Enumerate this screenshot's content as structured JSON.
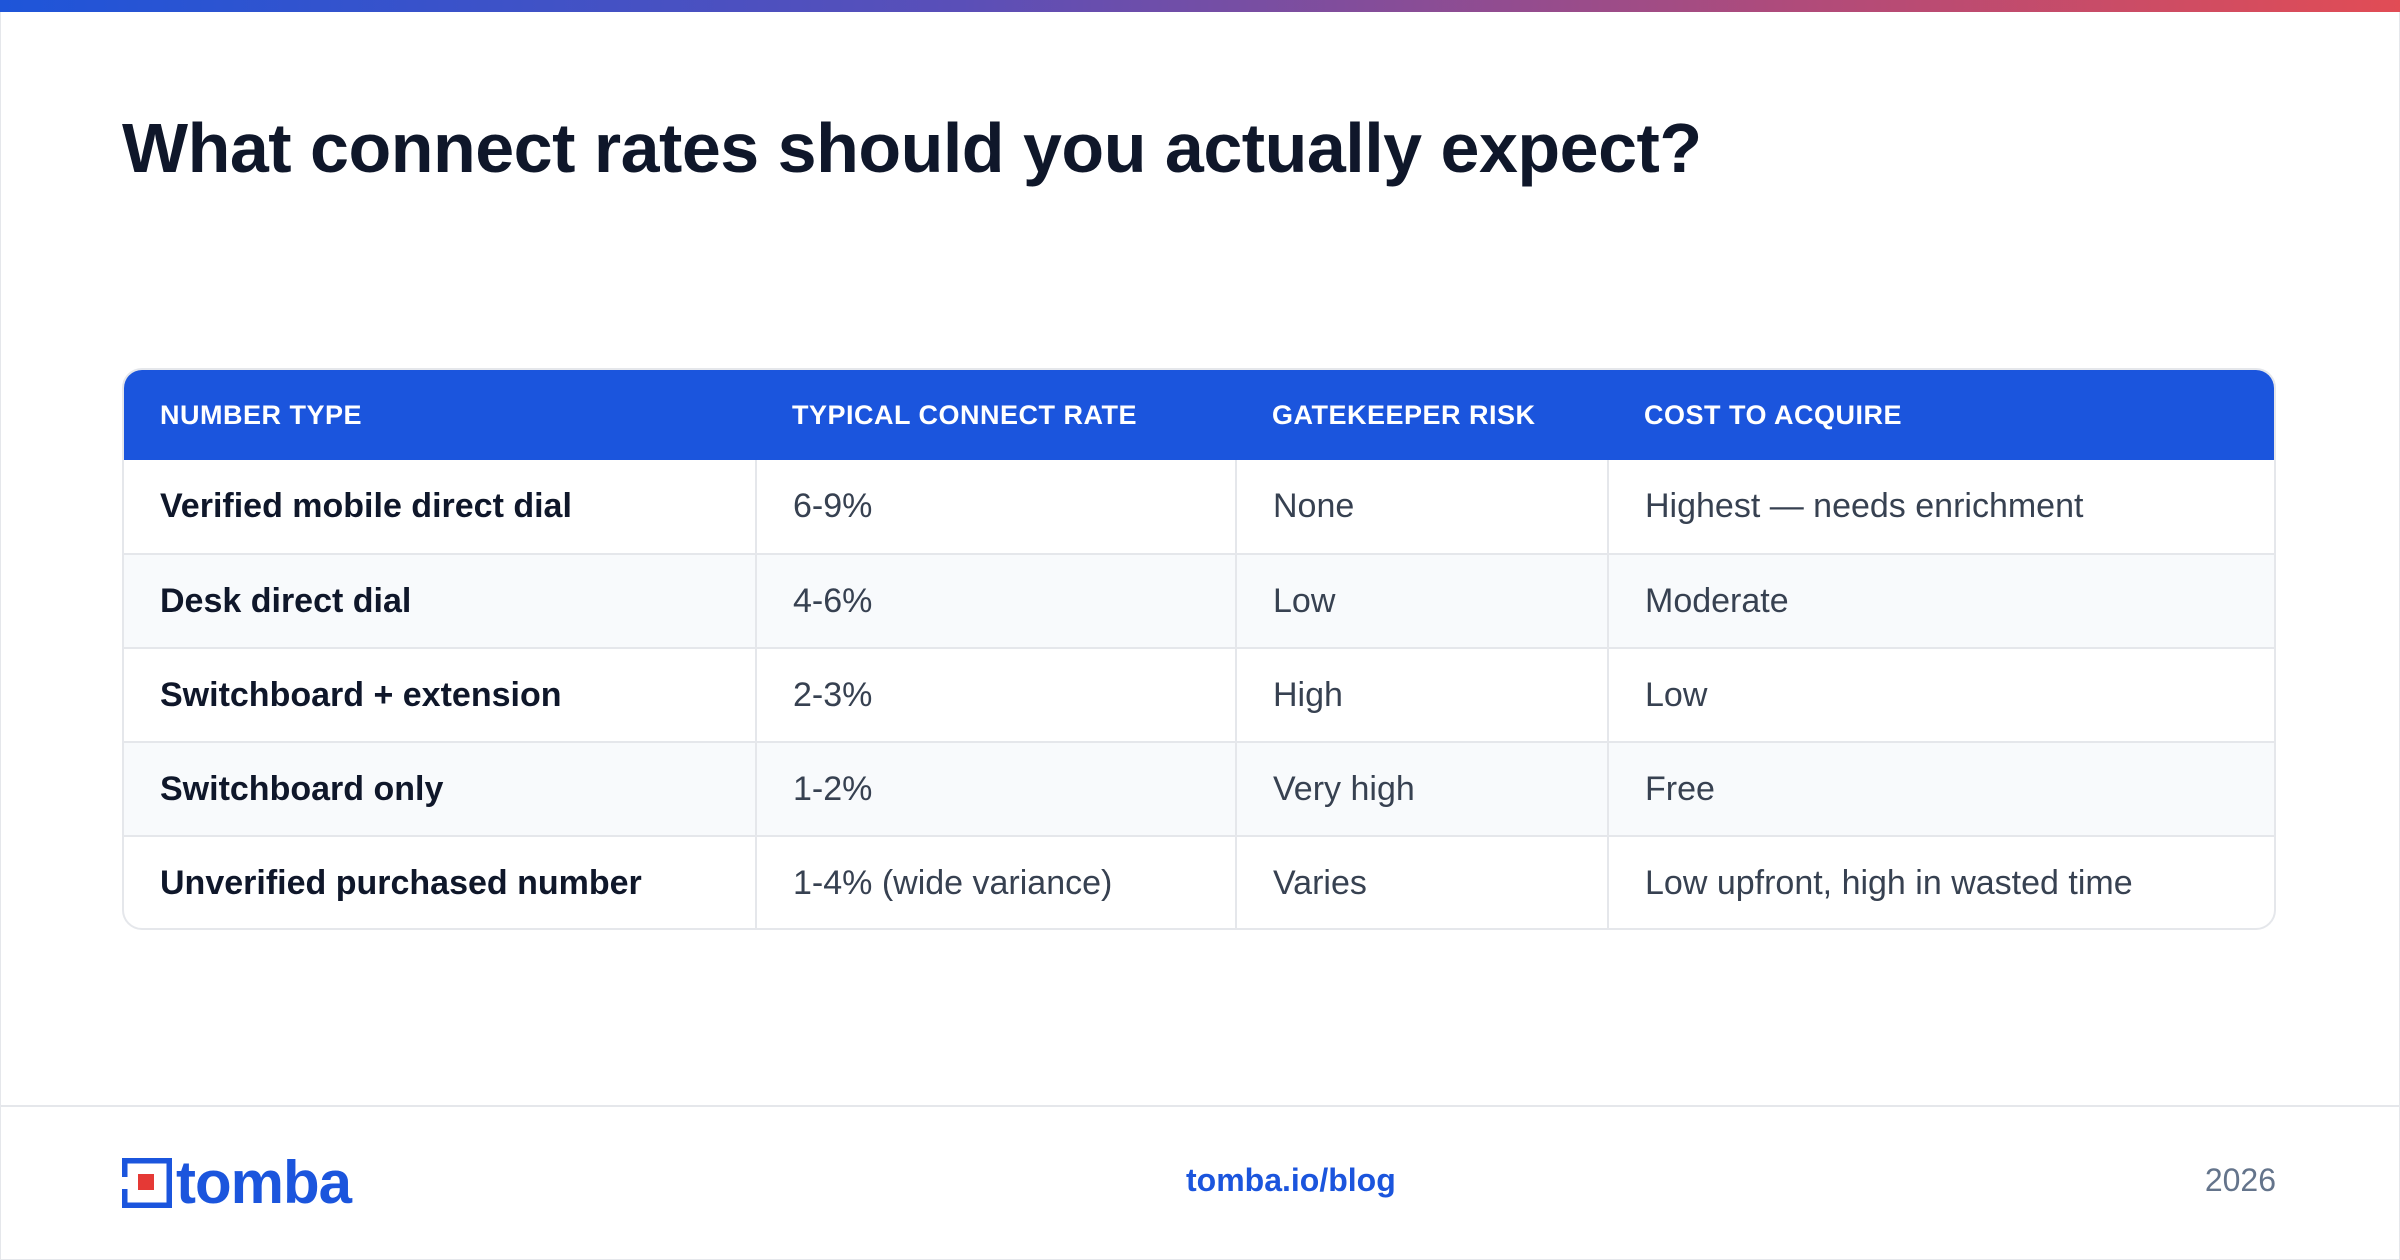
{
  "title": "What connect rates should you actually expect?",
  "table": {
    "headers": [
      "NUMBER TYPE",
      "TYPICAL CONNECT RATE",
      "GATEKEEPER RISK",
      "COST TO ACQUIRE"
    ],
    "rows": [
      [
        "Verified mobile direct dial",
        "6-9%",
        "None",
        "Highest — needs enrichment"
      ],
      [
        "Desk direct dial",
        "4-6%",
        "Low",
        "Moderate"
      ],
      [
        "Switchboard + extension",
        "2-3%",
        "High",
        "Low"
      ],
      [
        "Switchboard only",
        "1-2%",
        "Very high",
        "Free"
      ],
      [
        "Unverified purchased number",
        "1-4% (wide variance)",
        "Varies",
        "Low upfront, high in wasted time"
      ]
    ]
  },
  "footer": {
    "logo_text": "tomba",
    "link": "tomba.io/blog",
    "year": "2026"
  },
  "colors": {
    "brand_blue": "#1b55dd",
    "accent_red": "#e53935",
    "title": "#0f172a"
  },
  "icons": {
    "logo": "tomba-logo-icon"
  }
}
